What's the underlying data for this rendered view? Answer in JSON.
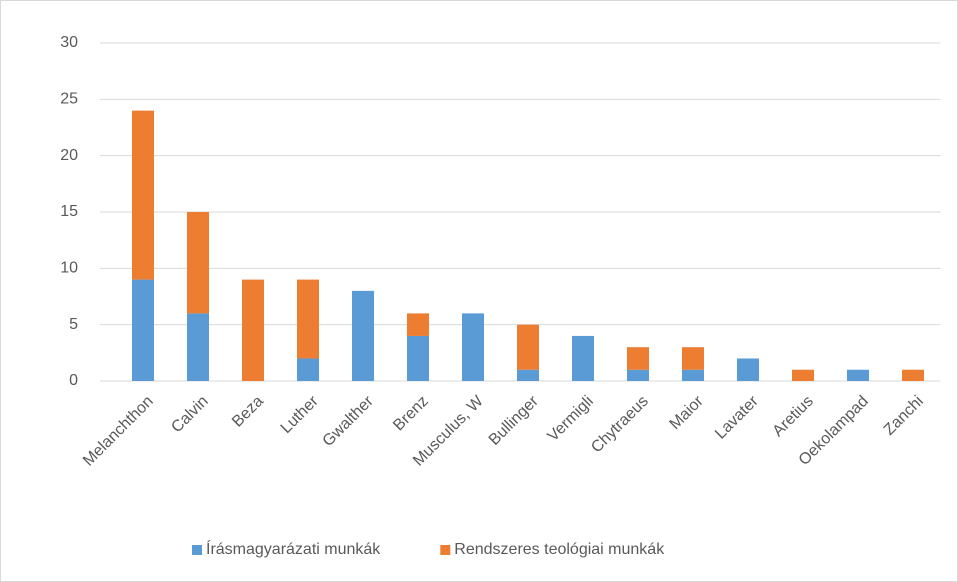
{
  "chart_data": {
    "type": "stacked_bar",
    "categories": [
      "Melanchthon",
      "Calvin",
      "Beza",
      "Luther",
      "Gwalther",
      "Brenz",
      "Musculus, W",
      "Bullinger",
      "Vermigli",
      "Chytraeus",
      "Maior",
      "Lavater",
      "Aretius",
      "Oekolampad",
      "Zanchi"
    ],
    "series": [
      {
        "name": "Írásmagyarázati munkák",
        "color": "#5b9bd5",
        "values": [
          9,
          6,
          0,
          2,
          8,
          4,
          6,
          1,
          4,
          1,
          1,
          2,
          0,
          1,
          0
        ]
      },
      {
        "name": "Rendszeres teológiai munkák",
        "color": "#ed7d31",
        "values": [
          15,
          9,
          9,
          7,
          0,
          2,
          0,
          4,
          0,
          2,
          2,
          0,
          1,
          0,
          1
        ]
      }
    ],
    "ylim": [
      0,
      30
    ],
    "yticks": [
      0,
      5,
      10,
      15,
      20,
      25,
      30
    ],
    "grid": true,
    "legend": "bottom"
  }
}
